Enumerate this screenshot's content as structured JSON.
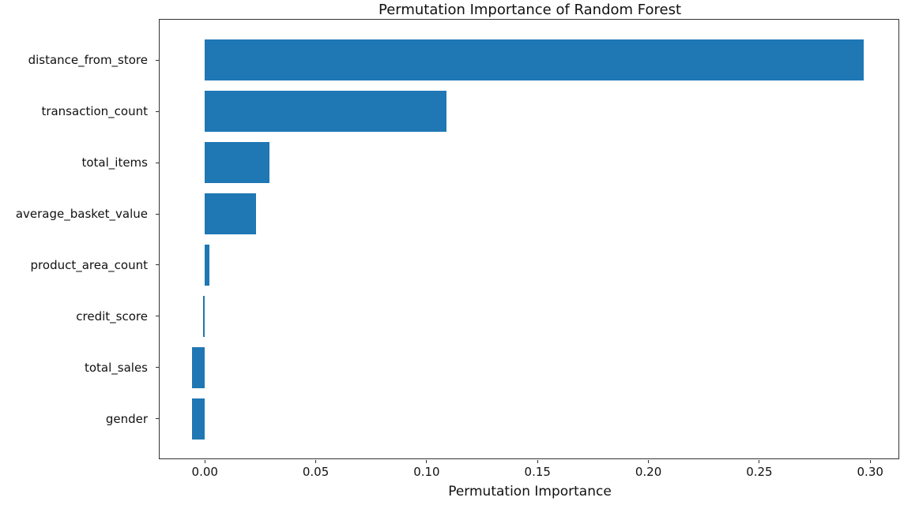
{
  "page": {
    "background_color": "#ffffff"
  },
  "chart_data": {
    "type": "bar",
    "orientation": "horizontal",
    "title": "Permutation Importance of Random Forest",
    "xlabel": "Permutation Importance",
    "ylabel": "",
    "categories": [
      "distance_from_store",
      "transaction_count",
      "total_items",
      "average_basket_value",
      "product_area_count",
      "credit_score",
      "total_sales",
      "gender"
    ],
    "values": [
      0.297,
      0.109,
      0.029,
      0.023,
      0.002,
      -0.0007,
      -0.0057,
      -0.0058
    ],
    "xticks": [
      0.0,
      0.05,
      0.1,
      0.15,
      0.2,
      0.25,
      0.3
    ],
    "xtick_labels": [
      "0.00",
      "0.05",
      "0.10",
      "0.15",
      "0.20",
      "0.25",
      "0.30"
    ],
    "xlim": [
      -0.0204,
      0.3131
    ],
    "bar_color": "#1f77b4",
    "axis_color": "#333333",
    "text_color": "#111111",
    "grid": false,
    "legend_position": "none",
    "bar_height_frac": 0.8,
    "category_margin": 0.05
  }
}
